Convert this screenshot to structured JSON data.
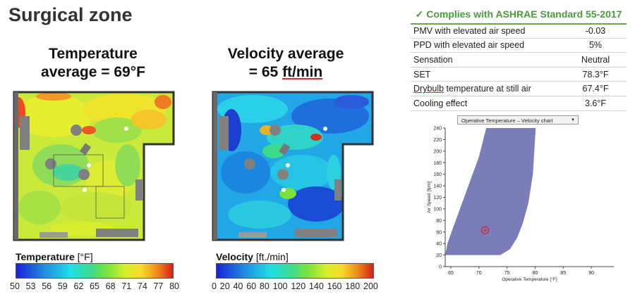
{
  "page": {
    "title": "Surgical zone"
  },
  "temperature_map": {
    "heading_line1": "Temperature",
    "heading_line2": "average = 69°F",
    "legend_label": "Temperature",
    "legend_unit": "[°F]",
    "ticks": [
      "50",
      "53",
      "56",
      "59",
      "62",
      "65",
      "68",
      "71",
      "74",
      "77",
      "80"
    ]
  },
  "velocity_map": {
    "heading_line1": "Velocity average",
    "heading_prefix": "= 65 ",
    "heading_unit": "ft/min",
    "legend_label": "Velocity",
    "legend_unit": "[ft./min]",
    "ticks": [
      "0",
      "20",
      "40",
      "60",
      "80",
      "100",
      "120",
      "140",
      "160",
      "180",
      "200"
    ]
  },
  "comfort": {
    "header": "Complies with ASHRAE Standard 55-2017",
    "check_icon": "checkmark-icon",
    "rows": [
      {
        "label": "PMV with elevated air speed",
        "value": "-0.03"
      },
      {
        "label": "PPD with elevated air speed",
        "value": "5%"
      },
      {
        "label": "Sensation",
        "value": "Neutral"
      },
      {
        "label": "SET",
        "value": "78.3°F"
      },
      {
        "label": "Drybulb temperature at still air",
        "value": "67.4°F"
      },
      {
        "label": "Cooling effect",
        "value": "3.6°F"
      }
    ]
  },
  "chart_selector": {
    "selected": "Operative Temperature – Velocity chart"
  },
  "chart_data": {
    "type": "area",
    "xlabel": "Operative Temperature [°F]",
    "ylabel": "Air Speed [fpm]",
    "xlim": [
      64,
      94
    ],
    "ylim": [
      0,
      240
    ],
    "x_ticks": [
      65,
      70,
      75,
      80,
      85,
      90
    ],
    "y_ticks": [
      0,
      20,
      40,
      60,
      80,
      100,
      120,
      140,
      160,
      180,
      200,
      220,
      240
    ],
    "comfort_zone_polygon": [
      [
        64,
        20
      ],
      [
        64.4,
        40
      ],
      [
        65.5,
        70
      ],
      [
        67,
        110
      ],
      [
        68.5,
        150
      ],
      [
        70,
        190
      ],
      [
        71.3,
        240
      ],
      [
        80.1,
        240
      ],
      [
        79.6,
        160
      ],
      [
        78.8,
        110
      ],
      [
        77.8,
        75
      ],
      [
        76.8,
        50
      ],
      [
        75.5,
        30
      ],
      [
        73.8,
        20
      ]
    ],
    "point": {
      "x": 71.1,
      "y": 63
    },
    "colors": {
      "zone": "#7b7db8",
      "point": "#d1262b"
    }
  }
}
